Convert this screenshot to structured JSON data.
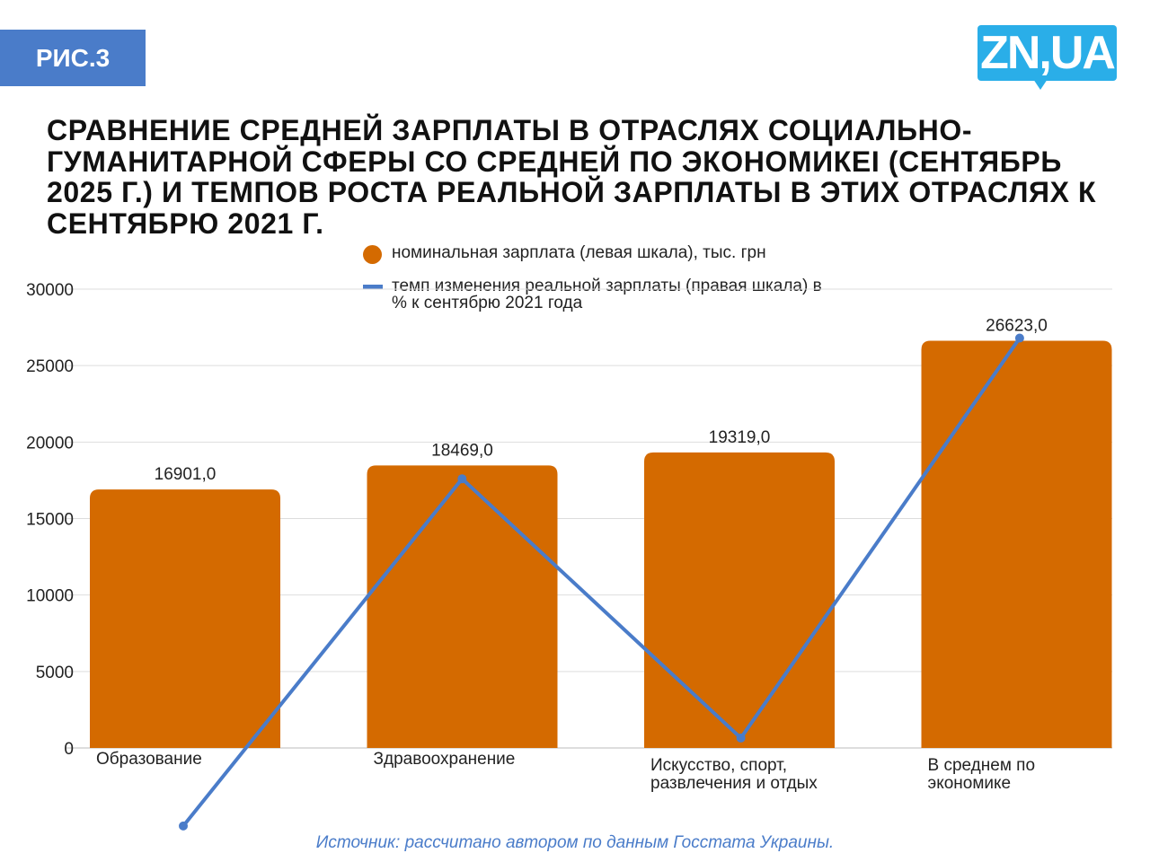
{
  "badge": "РИС.3",
  "logo": "ZN,UA",
  "title": "СРАВНЕНИЕ СРЕДНЕЙ ЗАРПЛАТЫ В ОТРАСЛЯХ СОЦИАЛЬНО-ГУМАНИТАРНОЙ СФЕРЫ СО СРЕДНЕЙ ПО ЭКОНОМИКЕI (СЕНТЯБРЬ 2025 Г.) И ТЕМПОВ РОСТА РЕАЛЬНОЙ ЗАРПЛАТЫ В ЭТИХ ОТРАСЛЯХ К СЕНТЯБРЮ 2021 Г.",
  "source": "Источник: рассчитано автором по данным Госстата Украины.",
  "colors": {
    "bar": "#d46a00",
    "line": "#4a7cc9",
    "badge": "#4a7cc9",
    "logo": "#2aaee8"
  },
  "chart_data": {
    "type": "bar+line",
    "categories": [
      "Образование",
      "Здравоохранение",
      "Искусство, спорт, развлечения и отдых",
      "В среднем по экономике"
    ],
    "yticks": [
      "0",
      "5000",
      "10000",
      "15000",
      "20000",
      "25000",
      "30000"
    ],
    "ylim": [
      0,
      30000
    ],
    "grid": true,
    "legend_placement": "top-center",
    "series": [
      {
        "name": "номинальная зарплата (левая шкала), тыс. грн",
        "type": "bar",
        "values": [
          16901.0,
          18469.0,
          19319.0,
          26623.0
        ],
        "labels": [
          "16901,0",
          "18469,0",
          "19319,0",
          "26623,0"
        ]
      },
      {
        "name": "темп изменения реальной зарплаты (правая шкала) в % к сентябрю 2021 года",
        "type": "line",
        "right_axis_shown": false,
        "values": [
          -5100,
          17600,
          650,
          26800
        ]
      }
    ]
  }
}
